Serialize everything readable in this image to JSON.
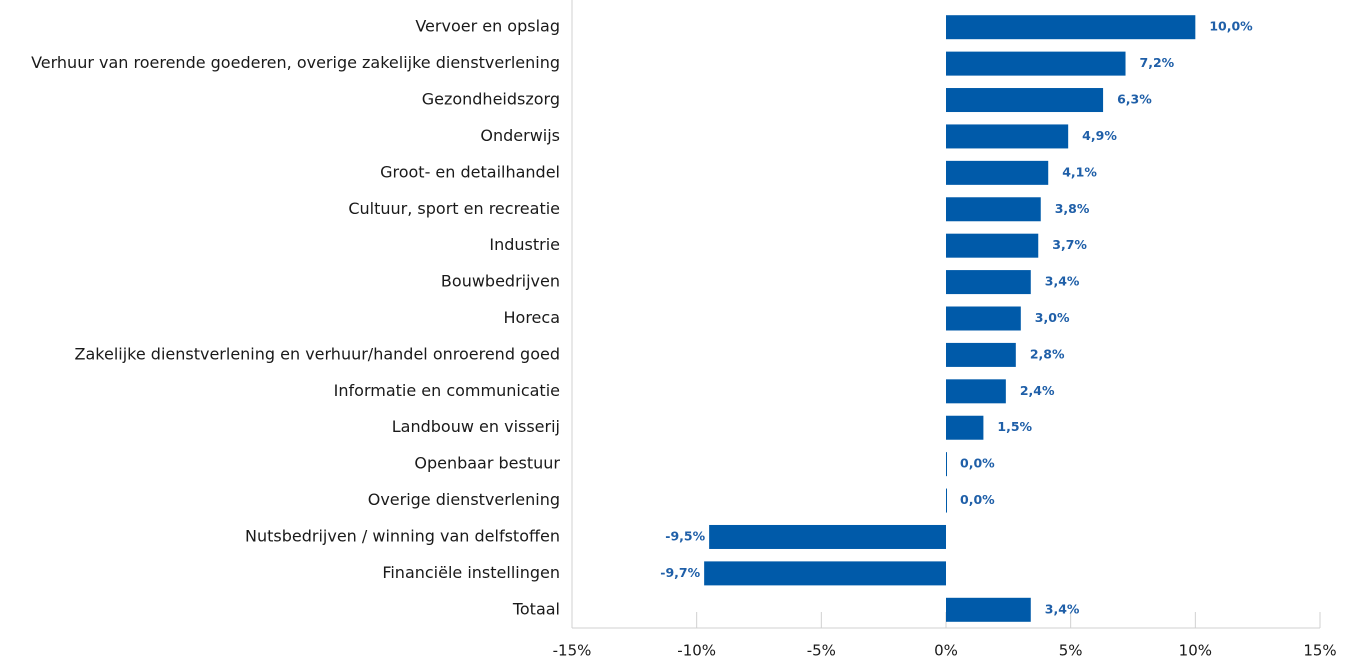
{
  "chart_data": {
    "type": "bar",
    "orientation": "horizontal",
    "categories": [
      "Vervoer en opslag",
      "Verhuur van roerende goederen, overige zakelijke dienstverlening",
      "Gezondheidszorg",
      "Onderwijs",
      "Groot- en detailhandel",
      "Cultuur, sport en recreatie",
      "Industrie",
      "Bouwbedrijven",
      "Horeca",
      "Zakelijke dienstverlening en verhuur/handel onroerend goed",
      "Informatie en communicatie",
      "Landbouw en visserij",
      "Openbaar bestuur",
      "Overige dienstverlening",
      "Nutsbedrijven / winning van delfstoffen",
      "Financiële instellingen",
      "Totaal"
    ],
    "values": [
      10.0,
      7.2,
      6.3,
      4.9,
      4.1,
      3.8,
      3.7,
      3.4,
      3.0,
      2.8,
      2.4,
      1.5,
      0.0,
      0.0,
      -9.5,
      -9.7,
      3.4
    ],
    "value_labels": [
      "10,0%",
      "7,2%",
      "6,3%",
      "4,9%",
      "4,1%",
      "3,8%",
      "3,7%",
      "3,4%",
      "3,0%",
      "2,8%",
      "2,4%",
      "1,5%",
      "0,0%",
      "0,0%",
      "-9,5%",
      "-9,7%",
      "3,4%"
    ],
    "color": "#005aa9",
    "xlim": [
      -15,
      15
    ],
    "xticks": [
      {
        "value": -15,
        "label": "-15%"
      },
      {
        "value": -10,
        "label": "-10%"
      },
      {
        "value": -5,
        "label": "-5%"
      },
      {
        "value": 0,
        "label": "0%"
      },
      {
        "value": 5,
        "label": "5%"
      },
      {
        "value": 10,
        "label": "10%"
      },
      {
        "value": 15,
        "label": "15%"
      }
    ]
  }
}
